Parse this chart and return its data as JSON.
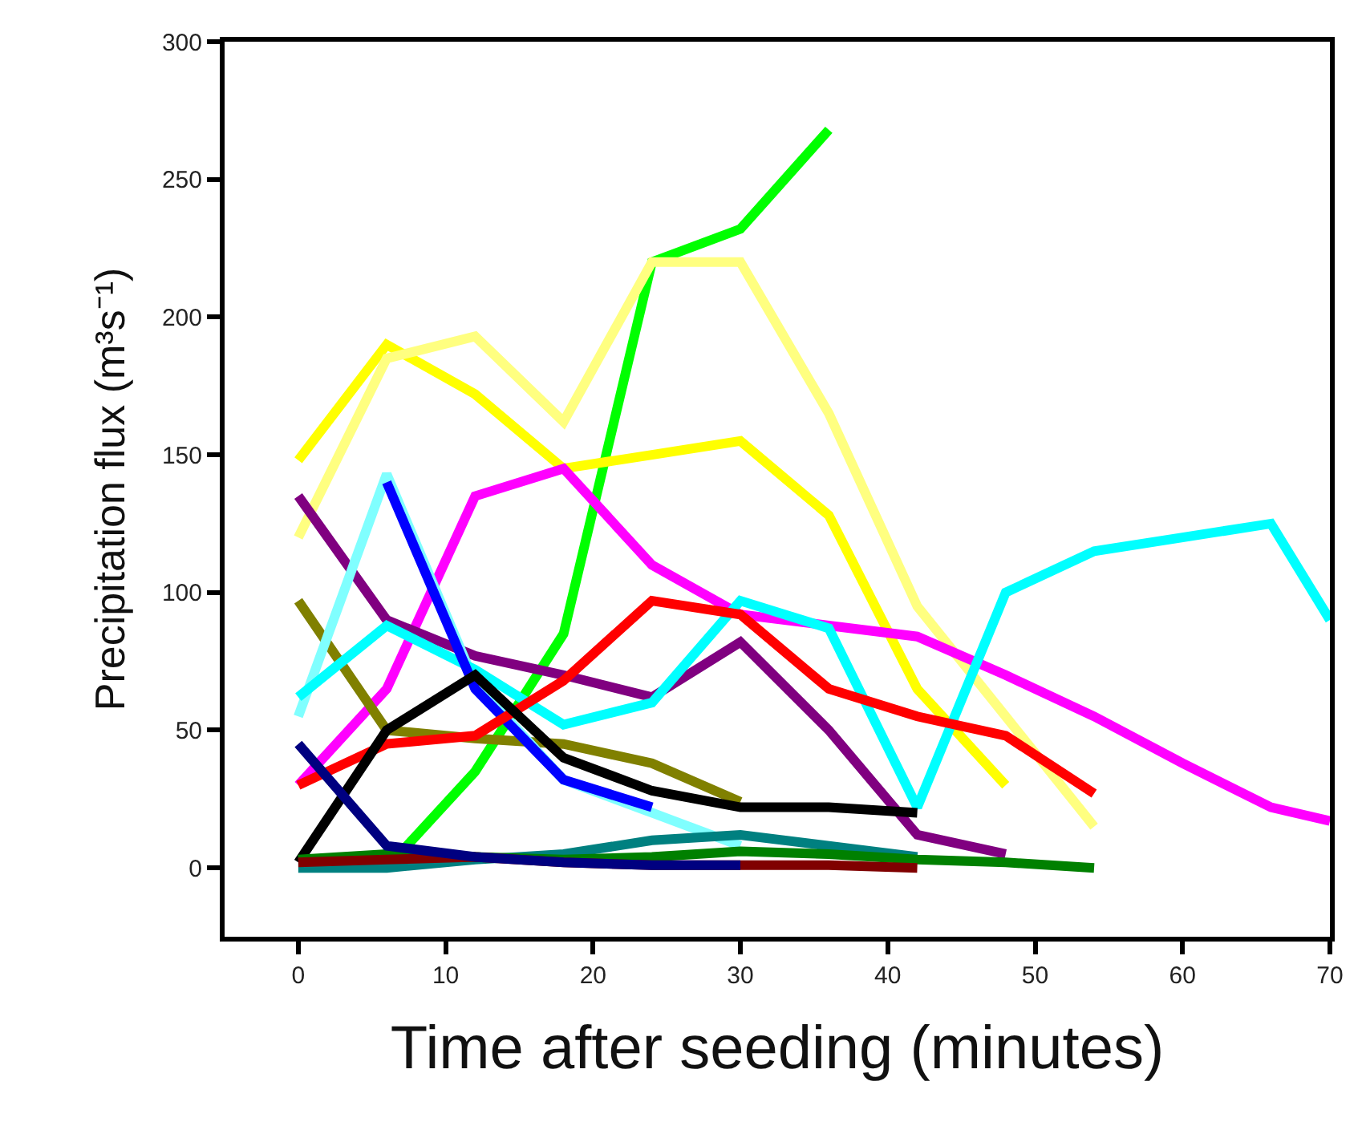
{
  "chart_data": {
    "type": "line",
    "xlabel": "Time after seeding (minutes)",
    "ylabel": "Precipitation flux (m³s⁻¹)",
    "xlim": [
      -5,
      70
    ],
    "ylim": [
      -25,
      300
    ],
    "xticks": [
      0,
      10,
      20,
      30,
      40,
      50,
      60,
      70
    ],
    "yticks": [
      0,
      50,
      100,
      150,
      200,
      250,
      300
    ],
    "grid": false,
    "marker": "none",
    "line_style": "solid",
    "series": [
      {
        "color": "#00ff00",
        "x": [
          6,
          12,
          18,
          24,
          30,
          36
        ],
        "values": [
          0,
          35,
          85,
          220,
          232,
          268
        ]
      },
      {
        "color": "#ffff00",
        "x": [
          0,
          6,
          12,
          18,
          24,
          30,
          36,
          42,
          48
        ],
        "values": [
          148,
          190,
          172,
          145,
          150,
          155,
          128,
          65,
          30
        ]
      },
      {
        "color": "#ffff80",
        "x": [
          0,
          6,
          12,
          18,
          24,
          30,
          36,
          42,
          48,
          54
        ],
        "values": [
          120,
          185,
          193,
          162,
          220,
          220,
          165,
          95,
          55,
          15
        ]
      },
      {
        "color": "#ff00ff",
        "x": [
          0,
          6,
          12,
          18,
          24,
          30,
          36,
          42,
          48,
          54,
          60,
          66,
          70
        ],
        "values": [
          30,
          65,
          135,
          145,
          110,
          92,
          88,
          84,
          70,
          55,
          38,
          22,
          17
        ]
      },
      {
        "color": "#800080",
        "x": [
          0,
          6,
          12,
          18,
          24,
          30,
          36,
          42,
          48
        ],
        "values": [
          135,
          90,
          77,
          70,
          62,
          82,
          50,
          12,
          5
        ]
      },
      {
        "color": "#808000",
        "x": [
          0,
          6,
          12,
          18,
          24,
          30
        ],
        "values": [
          97,
          50,
          47,
          45,
          38,
          24
        ]
      },
      {
        "color": "#80ffff",
        "x": [
          0,
          6,
          12,
          18,
          24,
          30
        ],
        "values": [
          55,
          143,
          67,
          32,
          20,
          8
        ]
      },
      {
        "color": "#00ffff",
        "x": [
          0,
          6,
          12,
          18,
          24,
          30,
          36,
          42,
          48,
          54,
          60,
          66,
          70
        ],
        "values": [
          62,
          88,
          72,
          52,
          60,
          97,
          87,
          22,
          100,
          115,
          120,
          125,
          90
        ]
      },
      {
        "color": "#0000ff",
        "x": [
          6,
          12,
          18,
          24
        ],
        "values": [
          140,
          65,
          32,
          22
        ]
      },
      {
        "color": "#ff0000",
        "x": [
          0,
          6,
          12,
          18,
          24,
          30,
          36,
          42,
          48,
          54
        ],
        "values": [
          30,
          45,
          48,
          68,
          97,
          92,
          65,
          55,
          48,
          27
        ]
      },
      {
        "color": "#000000",
        "x": [
          0,
          6,
          12,
          18,
          24,
          30,
          36,
          42
        ],
        "values": [
          2,
          50,
          70,
          40,
          28,
          22,
          22,
          20
        ]
      },
      {
        "color": "#008080",
        "x": [
          0,
          6,
          12,
          18,
          24,
          30,
          36,
          42
        ],
        "values": [
          0,
          0,
          3,
          5,
          10,
          12,
          8,
          4
        ]
      },
      {
        "color": "#008000",
        "x": [
          0,
          6,
          12,
          18,
          24,
          30,
          36,
          42,
          48,
          54
        ],
        "values": [
          3,
          5,
          4,
          3,
          4,
          6,
          5,
          3,
          2,
          0
        ]
      },
      {
        "color": "#800000",
        "x": [
          0,
          6,
          12,
          18,
          24,
          30,
          36,
          42
        ],
        "values": [
          2,
          3,
          4,
          2,
          1,
          1,
          1,
          0
        ]
      },
      {
        "color": "#000080",
        "x": [
          0,
          6,
          12,
          18,
          24,
          30
        ],
        "values": [
          45,
          8,
          4,
          2,
          1,
          1
        ]
      }
    ]
  }
}
